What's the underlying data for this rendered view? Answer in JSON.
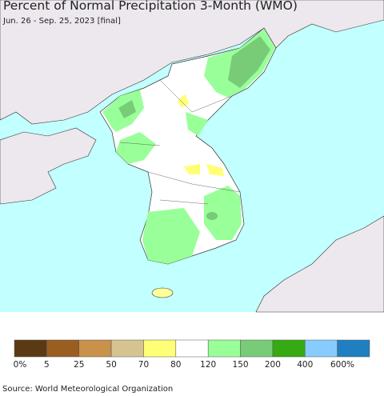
{
  "header": {
    "title": "Percent of Normal Precipitation 3-Month (WMO)",
    "subtitle": "Jun. 26 - Sep. 25, 2023 [final]"
  },
  "legend": {
    "colors": [
      "#5a3a14",
      "#9a5e21",
      "#c8924b",
      "#d5c48f",
      "#ffff77",
      "#ffffff",
      "#99ff99",
      "#78cc78",
      "#35aa12",
      "#88ccff",
      "#1f7fc0"
    ],
    "labels": [
      "0%",
      "5",
      "25",
      "50",
      "70",
      "80",
      "120",
      "150",
      "200",
      "400",
      "600%"
    ]
  },
  "footer": {
    "source": "Source: World Meteorological Organization"
  }
}
